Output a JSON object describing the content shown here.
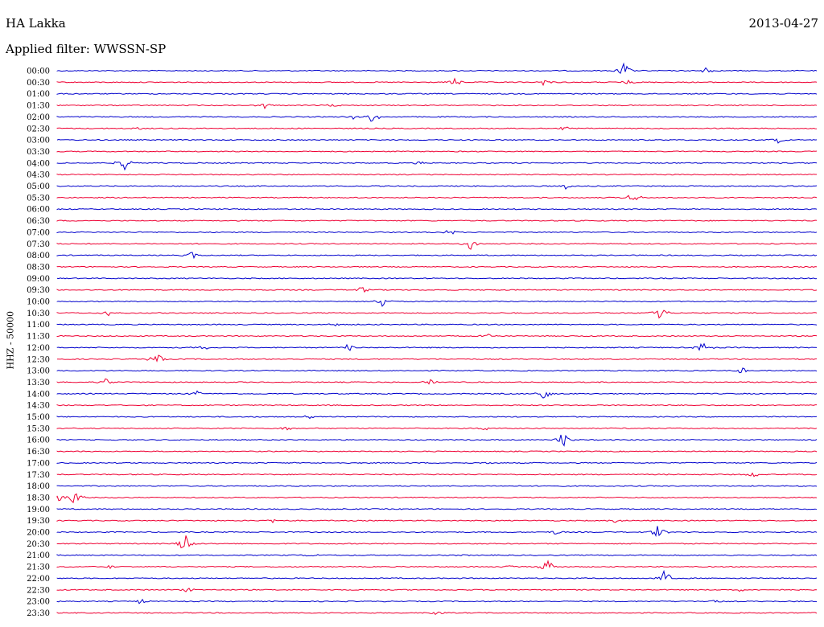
{
  "header": {
    "station": "HA Lakka",
    "date": "2013-04-27",
    "filter": "Applied filter: WWSSN-SP"
  },
  "chart_data": {
    "type": "line",
    "title": "HA Lakka",
    "ylabel": "HHZ - 50000",
    "row_labels": [
      "00:00",
      "00:30",
      "01:00",
      "01:30",
      "02:00",
      "02:30",
      "03:00",
      "03:30",
      "04:00",
      "04:30",
      "05:00",
      "05:30",
      "06:00",
      "06:30",
      "07:00",
      "07:30",
      "08:00",
      "08:30",
      "09:00",
      "09:30",
      "10:00",
      "10:30",
      "11:00",
      "11:30",
      "12:00",
      "12:30",
      "13:00",
      "13:30",
      "14:00",
      "14:30",
      "15:00",
      "15:30",
      "16:00",
      "16:30",
      "17:00",
      "17:30",
      "18:00",
      "18:30",
      "19:00",
      "19:30",
      "20:00",
      "20:30",
      "21:00",
      "21:30",
      "22:00",
      "22:30",
      "23:00",
      "23:30"
    ],
    "colors": [
      "#0000cc",
      "#ee0033"
    ],
    "events": [
      {
        "row": 0,
        "x": 0.746,
        "amp": 12
      },
      {
        "row": 0,
        "x": 0.853,
        "amp": 5
      },
      {
        "row": 1,
        "x": 0.524,
        "amp": 8
      },
      {
        "row": 1,
        "x": 0.641,
        "amp": 5
      },
      {
        "row": 1,
        "x": 0.749,
        "amp": 3
      },
      {
        "row": 3,
        "x": 0.273,
        "amp": 4
      },
      {
        "row": 3,
        "x": 0.361,
        "amp": 3
      },
      {
        "row": 4,
        "x": 0.389,
        "amp": 3
      },
      {
        "row": 4,
        "x": 0.416,
        "amp": 11
      },
      {
        "row": 5,
        "x": 0.108,
        "amp": 2
      },
      {
        "row": 5,
        "x": 0.666,
        "amp": 3
      },
      {
        "row": 6,
        "x": 0.948,
        "amp": 4
      },
      {
        "row": 8,
        "x": 0.088,
        "amp": 10
      },
      {
        "row": 8,
        "x": 0.476,
        "amp": 3
      },
      {
        "row": 10,
        "x": 0.668,
        "amp": 5
      },
      {
        "row": 11,
        "x": 0.757,
        "amp": 9
      },
      {
        "row": 14,
        "x": 0.516,
        "amp": 5
      },
      {
        "row": 15,
        "x": 0.545,
        "amp": 10
      },
      {
        "row": 16,
        "x": 0.177,
        "amp": 5
      },
      {
        "row": 19,
        "x": 0.4,
        "amp": 5
      },
      {
        "row": 20,
        "x": 0.429,
        "amp": 11
      },
      {
        "row": 21,
        "x": 0.067,
        "amp": 5
      },
      {
        "row": 21,
        "x": 0.793,
        "amp": 14
      },
      {
        "row": 22,
        "x": 0.363,
        "amp": 3
      },
      {
        "row": 23,
        "x": 0.568,
        "amp": 4
      },
      {
        "row": 24,
        "x": 0.19,
        "amp": 5
      },
      {
        "row": 24,
        "x": 0.383,
        "amp": 6
      },
      {
        "row": 24,
        "x": 0.849,
        "amp": 9
      },
      {
        "row": 25,
        "x": 0.131,
        "amp": 10
      },
      {
        "row": 26,
        "x": 0.901,
        "amp": 5
      },
      {
        "row": 27,
        "x": 0.064,
        "amp": 5
      },
      {
        "row": 27,
        "x": 0.49,
        "amp": 6
      },
      {
        "row": 28,
        "x": 0.184,
        "amp": 4
      },
      {
        "row": 28,
        "x": 0.64,
        "amp": 11
      },
      {
        "row": 30,
        "x": 0.33,
        "amp": 3
      },
      {
        "row": 31,
        "x": 0.303,
        "amp": 4
      },
      {
        "row": 31,
        "x": 0.563,
        "amp": 3
      },
      {
        "row": 32,
        "x": 0.665,
        "amp": 12
      },
      {
        "row": 34,
        "x": 0.566,
        "amp": 2
      },
      {
        "row": 35,
        "x": 0.915,
        "amp": 4
      },
      {
        "row": 37,
        "x": 0.003,
        "amp": 9
      },
      {
        "row": 37,
        "x": 0.022,
        "amp": 12
      },
      {
        "row": 39,
        "x": 0.283,
        "amp": 3
      },
      {
        "row": 39,
        "x": 0.733,
        "amp": 3
      },
      {
        "row": 40,
        "x": 0.655,
        "amp": 4
      },
      {
        "row": 40,
        "x": 0.791,
        "amp": 10
      },
      {
        "row": 41,
        "x": 0.168,
        "amp": 15
      },
      {
        "row": 42,
        "x": 0.333,
        "amp": 3
      },
      {
        "row": 42,
        "x": 0.538,
        "amp": 2
      },
      {
        "row": 43,
        "x": 0.07,
        "amp": 3
      },
      {
        "row": 43,
        "x": 0.596,
        "amp": 3
      },
      {
        "row": 43,
        "x": 0.645,
        "amp": 12
      },
      {
        "row": 44,
        "x": 0.799,
        "amp": 12
      },
      {
        "row": 45,
        "x": 0.172,
        "amp": 4
      },
      {
        "row": 45,
        "x": 0.899,
        "amp": 2
      },
      {
        "row": 46,
        "x": 0.109,
        "amp": 4
      },
      {
        "row": 46,
        "x": 0.865,
        "amp": 3
      },
      {
        "row": 47,
        "x": 0.499,
        "amp": 4
      }
    ]
  }
}
